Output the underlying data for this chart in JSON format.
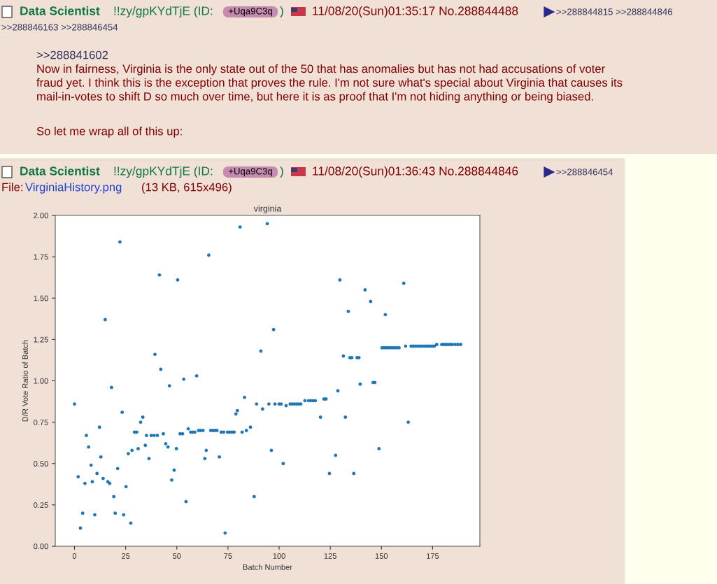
{
  "chart_data": {
    "type": "scatter",
    "title": "virginia",
    "xlabel": "Batch Number",
    "ylabel": "D/R Vote Ratio of Batch",
    "color": "#1f77b4",
    "marker": "circle",
    "grid": false,
    "xlim": [
      -9.4,
      198.1
    ],
    "ylim": [
      0,
      2
    ],
    "xticks": [
      0,
      25,
      50,
      75,
      100,
      125,
      150,
      175
    ],
    "yticks": [
      {
        "value": 0,
        "label": "0.00"
      },
      {
        "value": 0.25,
        "label": "0.25"
      },
      {
        "value": 0.5,
        "label": "0.50"
      },
      {
        "value": 0.75,
        "label": "0.75"
      },
      {
        "value": 1,
        "label": "1.00"
      },
      {
        "value": 1.25,
        "label": "1.25"
      },
      {
        "value": 1.5,
        "label": "1.50"
      },
      {
        "value": 1.75,
        "label": "1.75"
      },
      {
        "value": 2,
        "label": "2.00"
      }
    ],
    "x": [
      0,
      1.8,
      2.9,
      4.0,
      5.1,
      5.8,
      6.9,
      8.1,
      8.7,
      9.9,
      11.0,
      12.2,
      12.9,
      14.0,
      15.0,
      16.3,
      17.2,
      18.1,
      19.2,
      19.9,
      21.1,
      22.2,
      23.3,
      24.0,
      25.2,
      26.3,
      27.5,
      28.1,
      29.3,
      30.4,
      31.1,
      32.3,
      33.4,
      34.6,
      35.2,
      36.4,
      37.5,
      38.9,
      39.3,
      40.5,
      41.5,
      42.2,
      43.4,
      44.6,
      45.7,
      46.4,
      47.5,
      48.7,
      49.8,
      50.4,
      51.6,
      52.8,
      53.4,
      54.5,
      55.6,
      56.8,
      57.8,
      58.8,
      59.7,
      60.7,
      61.7,
      62.8,
      63.7,
      64.4,
      65.6,
      66.6,
      67.6,
      68.6,
      69.6,
      70.8,
      71.7,
      72.9,
      73.6,
      74.8,
      75.9,
      77.0,
      78.0,
      78.9,
      79.6,
      80.9,
      81.9,
      83.1,
      84.0,
      86.0,
      87.8,
      89.0,
      91.1,
      91.9,
      94.2,
      95.0,
      96.2,
      97.3,
      98.0,
      100.0,
      101.0,
      102.0,
      103.4,
      105.4,
      106.4,
      107.5,
      108.5,
      109.6,
      110.6,
      112.6,
      114.4,
      115.5,
      116.6,
      117.7,
      120.2,
      121.9,
      122.9,
      124.6,
      127.6,
      128.7,
      129.7,
      131.4,
      132.4,
      133.8,
      134.6,
      135.5,
      136.5,
      138.1,
      139.0,
      139.6,
      142.0,
      144.7,
      145.9,
      146.8,
      148.8,
      150.3,
      151.3,
      151.9,
      152.3,
      153.4,
      154.4,
      155.4,
      156.5,
      157.5,
      158.6,
      160.9,
      161.8,
      163.1,
      164.5,
      165.5,
      166.6,
      167.6,
      168.6,
      169.7,
      170.7,
      171.7,
      172.8,
      173.8,
      174.8,
      175.8,
      177.0,
      179.5,
      180.5,
      181.5,
      182.5,
      183.6,
      184.6,
      186.0,
      187.3,
      188.7
    ],
    "values": [
      0.86,
      0.42,
      0.11,
      0.2,
      0.38,
      0.67,
      0.6,
      0.49,
      0.39,
      0.19,
      0.44,
      0.72,
      0.54,
      0.41,
      1.37,
      0.39,
      0.38,
      0.96,
      0.3,
      0.2,
      0.47,
      1.84,
      0.81,
      0.19,
      0.36,
      0.56,
      0.14,
      0.58,
      0.69,
      0.69,
      0.59,
      0.75,
      0.78,
      0.61,
      0.67,
      0.53,
      0.67,
      0.67,
      1.16,
      0.67,
      1.64,
      1.07,
      0.68,
      0.62,
      0.6,
      0.97,
      0.4,
      0.46,
      0.59,
      1.61,
      0.68,
      0.68,
      1.01,
      0.27,
      0.71,
      0.69,
      0.69,
      0.69,
      1.03,
      0.7,
      0.7,
      0.7,
      0.53,
      0.58,
      1.76,
      0.7,
      0.7,
      0.7,
      0.7,
      0.54,
      0.69,
      0.69,
      0.08,
      0.69,
      0.69,
      0.69,
      0.69,
      0.8,
      0.82,
      1.93,
      0.69,
      0.9,
      0.7,
      0.72,
      0.3,
      0.86,
      1.18,
      0.83,
      1.95,
      0.86,
      0.58,
      1.31,
      0.86,
      0.86,
      0.86,
      0.5,
      0.85,
      0.86,
      0.86,
      0.86,
      0.86,
      0.86,
      0.86,
      0.88,
      0.88,
      0.88,
      0.88,
      0.88,
      0.78,
      0.89,
      0.89,
      0.44,
      0.55,
      0.94,
      1.61,
      1.15,
      0.78,
      1.42,
      1.14,
      1.14,
      0.44,
      1.14,
      1.14,
      0.98,
      1.55,
      1.48,
      0.99,
      0.99,
      0.59,
      1.2,
      1.2,
      1.4,
      1.2,
      1.2,
      1.2,
      1.2,
      1.2,
      1.2,
      1.2,
      1.59,
      1.21,
      0.75,
      1.21,
      1.21,
      1.21,
      1.21,
      1.21,
      1.21,
      1.21,
      1.21,
      1.21,
      1.21,
      1.21,
      1.21,
      1.22,
      1.22,
      1.22,
      1.22,
      1.22,
      1.22,
      1.22,
      1.22,
      1.22,
      1.22
    ],
    "annotations": [
      "Data Scientist",
      "!!zy/gpKYdTjE (ID:",
      "+Uqa9C3q",
      ")",
      "11/08/20(Sun)01:35:17 No.288844488",
      ">>288844815 >>288844846",
      ">>288846163 >>288846454",
      ">>288841602",
      "Now in fairness, Virginia is the only state out of the 50 that has anomalies but has not had accusations of voter\nfraud yet. I think this is the exception that proves the rule. I'm not sure what's special about Virginia that causes its\nmail-in-votes to shift D so much over time, but here it is as proof that I'm not hiding anything or being biased.",
      "So let me wrap all of this up:",
      "Data Scientist",
      "!!zy/gpKYdTjE (ID:",
      "+Uqa9C3q",
      ")",
      "11/08/20(Sun)01:36:43 No.288844846",
      ">>288846454",
      "File:",
      "VirginiaHistory.png",
      "(13 KB, 615x496)"
    ]
  }
}
